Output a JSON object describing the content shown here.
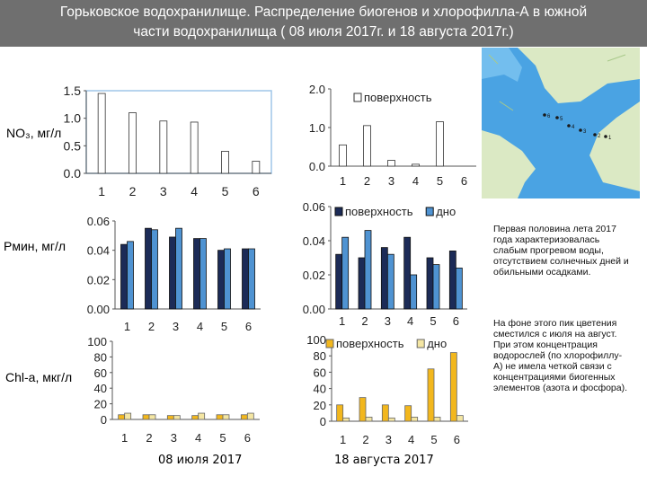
{
  "title": {
    "line1": "Горьковское водохранилище. Распределение биогенов и хлорофилла-А в южной",
    "line2": "части водохранилища ( 08 июля 2017г. и 18 августа 2017г.)"
  },
  "row_labels": {
    "no3": "NO₃, мг/л",
    "pmin": "Pмин, мг/л",
    "chla": "Chl-a, мкг/л"
  },
  "dates": {
    "july": "08 июля 2017",
    "august": "18 августа 2017"
  },
  "side_text": {
    "para1": "Первая половина лета 2017 года характеризовалась слабым прогревом воды, отсутствием солнечных дней и обильными осадками.",
    "para2": "На фоне этого пик цветения сместился с июля на август. При этом концентрация водорослей (по хлорофиллу-А) не имела четкой связи с концентрациями биогенных элементов (азота и фосфора)."
  },
  "map": {
    "station_labels": [
      "1",
      "2",
      "3",
      "4",
      "5",
      "6"
    ],
    "water_color": "#3d9be0",
    "land_color": "#cfe3b0"
  },
  "colors": {
    "surface_dark": "#1c2b57",
    "bottom_blue": "#4f93d2",
    "chl_surface": "#f2b71d",
    "chl_bottom": "#f4e6a3",
    "no3_bar": "#ffffff",
    "title_bg": "#6f6f6f"
  },
  "chart_data": [
    {
      "id": "no3_july",
      "type": "bar",
      "categories": [
        "1",
        "2",
        "3",
        "4",
        "5",
        "6"
      ],
      "series": [
        {
          "values": [
            1.45,
            1.1,
            0.95,
            0.93,
            0.4,
            0.22
          ]
        }
      ],
      "ylim": [
        0,
        1.5
      ],
      "yticks": [
        "0.0",
        "0.5",
        "1.0",
        "1.5"
      ],
      "legend": []
    },
    {
      "id": "no3_august",
      "type": "bar",
      "categories": [
        "1",
        "2",
        "3",
        "4",
        "5",
        "6"
      ],
      "series": [
        {
          "name": "поверхность",
          "values": [
            0.55,
            1.05,
            0.15,
            0.05,
            1.15,
            0.0
          ]
        }
      ],
      "ylim": [
        0,
        2.0
      ],
      "yticks": [
        "0.0",
        "1.0",
        "2.0"
      ],
      "legend": [
        "поверхность"
      ]
    },
    {
      "id": "pmin_july",
      "type": "bar",
      "categories": [
        "1",
        "2",
        "3",
        "4",
        "5",
        "6"
      ],
      "series": [
        {
          "values": [
            0.044,
            0.055,
            0.049,
            0.048,
            0.04,
            0.041
          ]
        },
        {
          "values": [
            0.046,
            0.054,
            0.055,
            0.048,
            0.041,
            0.041
          ]
        }
      ],
      "ylim": [
        0,
        0.06
      ],
      "yticks": [
        "0.00",
        "0.02",
        "0.04",
        "0.06"
      ],
      "legend": []
    },
    {
      "id": "pmin_august",
      "type": "bar",
      "categories": [
        "1",
        "2",
        "3",
        "4",
        "5",
        "6"
      ],
      "series": [
        {
          "name": "поверхность",
          "values": [
            0.032,
            0.03,
            0.036,
            0.042,
            0.03,
            0.034
          ]
        },
        {
          "name": "дно",
          "values": [
            0.042,
            0.046,
            0.032,
            0.02,
            0.026,
            0.024
          ]
        }
      ],
      "ylim": [
        0,
        0.06
      ],
      "yticks": [
        "0.00",
        "0.02",
        "0.04",
        "0.06"
      ],
      "legend": [
        "поверхность",
        "дно"
      ]
    },
    {
      "id": "chla_july",
      "type": "bar",
      "categories": [
        "1",
        "2",
        "3",
        "4",
        "5",
        "6"
      ],
      "series": [
        {
          "values": [
            6,
            6,
            5,
            5,
            6,
            6
          ]
        },
        {
          "values": [
            8,
            6,
            5,
            8,
            6,
            8
          ]
        }
      ],
      "ylim": [
        0,
        100
      ],
      "yticks": [
        "0",
        "20",
        "40",
        "60",
        "80",
        "100"
      ],
      "legend": []
    },
    {
      "id": "chla_august",
      "type": "bar",
      "categories": [
        "1",
        "2",
        "3",
        "4",
        "5",
        "6"
      ],
      "series": [
        {
          "name": "поверхность",
          "values": [
            20,
            29,
            20,
            19,
            64,
            84
          ]
        },
        {
          "name": "дно",
          "values": [
            4,
            5,
            4,
            5,
            5,
            7
          ]
        }
      ],
      "ylim": [
        0,
        100
      ],
      "yticks": [
        "0",
        "20",
        "40",
        "60",
        "80",
        "100"
      ],
      "legend": [
        "поверхность",
        "дно"
      ]
    }
  ]
}
